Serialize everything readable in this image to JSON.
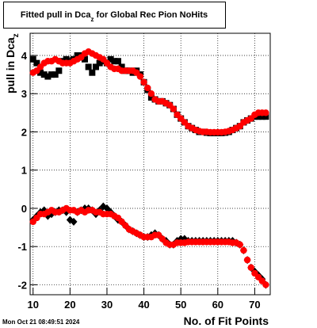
{
  "chart_data": {
    "type": "scatter",
    "title": {
      "main": "Fitted pull in Dca",
      "sub": "z",
      "rest": " for Global Rec Pion NoHits"
    },
    "ylabel": {
      "main": "pull in Dca",
      "sub": "z"
    },
    "xlabel": "No. of Fit Points",
    "timestamp": "Mon Oct 21 08:49:51 2024",
    "xlim": [
      9.2,
      74.2
    ],
    "ylim": [
      -2.26,
      4.58
    ],
    "xticks": [
      10,
      20,
      30,
      40,
      50,
      60,
      70
    ],
    "yticks": [
      -2,
      -1,
      0,
      1,
      2,
      3,
      4
    ],
    "grid": true,
    "x": [
      10,
      11,
      12,
      13,
      14,
      15,
      16,
      17,
      18,
      19,
      20,
      21,
      22,
      23,
      24,
      25,
      26,
      27,
      28,
      29,
      30,
      31,
      32,
      33,
      34,
      35,
      36,
      37,
      38,
      39,
      40,
      41,
      42,
      43,
      44,
      45,
      46,
      47,
      48,
      49,
      50,
      51,
      52,
      53,
      54,
      55,
      56,
      57,
      58,
      59,
      60,
      61,
      62,
      63,
      64,
      65,
      66,
      67,
      68,
      69,
      70,
      71,
      72,
      73
    ],
    "series": [
      {
        "color": "#000000",
        "marker": "square",
        "values": [
          3.9,
          3.8,
          3.55,
          3.5,
          3.45,
          3.5,
          3.5,
          3.6,
          3.85,
          3.9,
          3.85,
          3.9,
          4.0,
          4.0,
          3.9,
          3.7,
          3.55,
          3.7,
          3.8,
          3.85,
          3.8,
          3.9,
          3.85,
          3.85,
          3.7,
          3.6,
          3.6,
          3.55,
          3.6,
          3.5,
          3.3,
          3.1,
          2.9,
          2.85,
          2.8,
          2.8,
          2.75,
          2.7,
          2.6,
          2.45,
          2.35,
          2.25,
          2.15,
          2.1,
          2.05,
          2.0,
          2.0,
          1.98,
          1.97,
          1.97,
          1.97,
          1.97,
          1.98,
          2.0,
          2.05,
          2.1,
          2.15,
          2.25,
          2.3,
          2.35,
          2.4,
          2.4,
          2.4,
          2.4
        ]
      },
      {
        "color": "#ff0000",
        "marker": "circle",
        "values": [
          3.55,
          3.6,
          3.7,
          3.8,
          3.85,
          3.85,
          3.9,
          3.85,
          3.8,
          3.8,
          3.8,
          3.85,
          3.9,
          3.95,
          4.05,
          4.1,
          4.05,
          4.0,
          3.95,
          3.9,
          3.8,
          3.7,
          3.65,
          3.65,
          3.6,
          3.6,
          3.6,
          3.6,
          3.55,
          3.45,
          3.3,
          3.15,
          3.0,
          2.85,
          2.8,
          2.8,
          2.75,
          2.7,
          2.6,
          2.45,
          2.35,
          2.25,
          2.15,
          2.1,
          2.05,
          2.02,
          2.0,
          2.0,
          1.99,
          1.99,
          1.99,
          1.99,
          2.0,
          2.02,
          2.05,
          2.1,
          2.15,
          2.25,
          2.3,
          2.35,
          2.45,
          2.5,
          2.5,
          2.5
        ]
      },
      {
        "color": "#000000",
        "marker": "diamond",
        "values": [
          -0.3,
          -0.2,
          -0.1,
          -0.05,
          -0.2,
          -0.15,
          -0.1,
          -0.05,
          -0.05,
          -0.1,
          -0.3,
          -0.35,
          -0.1,
          -0.05,
          0.0,
          0.0,
          -0.05,
          -0.15,
          -0.05,
          0.05,
          0.0,
          -0.1,
          -0.2,
          -0.3,
          -0.35,
          -0.45,
          -0.55,
          -0.6,
          -0.65,
          -0.7,
          -0.75,
          -0.75,
          -0.7,
          -0.65,
          -0.7,
          -0.8,
          -0.85,
          -0.95,
          -0.95,
          -0.85,
          -0.8,
          -0.8,
          -0.85,
          -0.85,
          -0.85,
          -0.85,
          -0.85,
          -0.85,
          -0.85,
          -0.85,
          -0.85,
          -0.85,
          -0.85,
          -0.85,
          -0.85,
          -0.9,
          -0.95,
          -1.1,
          -1.35,
          -1.55,
          -1.65,
          -1.75,
          -1.85,
          -2.0
        ]
      },
      {
        "color": "#ff0000",
        "marker": "circle",
        "values": [
          -0.35,
          -0.25,
          -0.15,
          -0.15,
          -0.1,
          -0.05,
          -0.1,
          -0.1,
          -0.05,
          0.0,
          -0.05,
          -0.05,
          -0.1,
          -0.05,
          -0.1,
          -0.05,
          -0.05,
          -0.1,
          -0.1,
          -0.15,
          -0.15,
          -0.15,
          -0.2,
          -0.25,
          -0.35,
          -0.45,
          -0.55,
          -0.6,
          -0.65,
          -0.7,
          -0.75,
          -0.75,
          -0.75,
          -0.7,
          -0.7,
          -0.8,
          -0.9,
          -0.95,
          -0.95,
          -0.9,
          -0.9,
          -0.9,
          -0.88,
          -0.88,
          -0.88,
          -0.88,
          -0.88,
          -0.88,
          -0.88,
          -0.88,
          -0.88,
          -0.88,
          -0.88,
          -0.88,
          -0.9,
          -0.9,
          -0.95,
          -1.1,
          -1.35,
          -1.55,
          -1.7,
          -1.8,
          -1.9,
          -2.0
        ]
      }
    ]
  }
}
